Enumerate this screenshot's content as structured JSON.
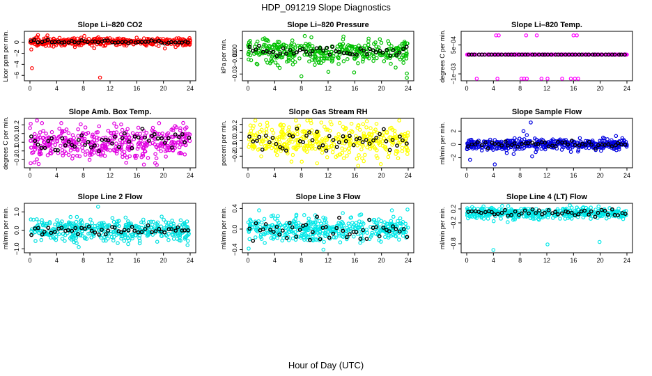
{
  "title": "HDP_091219  Slope Diagnostics",
  "xlabel_common": "Hour of Day (UTC)",
  "colors": {
    "black": "#000000"
  },
  "chart_data": [
    {
      "type": "scatter",
      "title": "Slope Li–820 CO2",
      "ylabel": "Licor ppm per min.",
      "xlim": [
        0,
        24
      ],
      "xticks": [
        "0",
        "4",
        "8",
        "12",
        "16",
        "20",
        "24"
      ],
      "ylim": [
        -6.6,
        1.6
      ],
      "yticks": [
        {
          "v": 0,
          "label": "0"
        },
        {
          "v": -2,
          "label": "−2"
        },
        {
          "v": -4,
          "label": "−4"
        },
        {
          "v": -6,
          "label": "−6"
        }
      ],
      "color": "#ff0000",
      "center": 0.1,
      "spread": 0.35,
      "count": 380,
      "black_spread": 0.15,
      "outliers": [
        [
          0.2,
          -1.3
        ],
        [
          0.3,
          -4.7
        ],
        [
          1.2,
          1.3
        ],
        [
          10.5,
          -6.4
        ]
      ]
    },
    {
      "type": "scatter",
      "title": "Slope Li–820 Pressure",
      "ylabel": "kPa per min.",
      "xlim": [
        0,
        24
      ],
      "xticks": [
        "0",
        "4",
        "8",
        "12",
        "16",
        "20",
        "24"
      ],
      "ylim": [
        -0.036,
        0.022
      ],
      "yticks": [
        {
          "v": 0.0,
          "label": "0.00"
        },
        {
          "v": -0.01,
          "label": "−0.01"
        },
        {
          "v": -0.03,
          "label": "−0.03"
        }
      ],
      "color": "#00c000",
      "center": -0.001,
      "spread": 0.008,
      "count": 380,
      "black_spread": 0.003,
      "outliers": [
        [
          8.0,
          -0.033
        ],
        [
          15.9,
          -0.028
        ],
        [
          23.8,
          -0.035
        ],
        [
          9.5,
          0.017
        ]
      ]
    },
    {
      "type": "scatter",
      "title": "Slope Li–820 Temp.",
      "ylabel": "degrees C per min.",
      "xlim": [
        0,
        24
      ],
      "xticks": [
        "0",
        "4",
        "8",
        "12",
        "16",
        "20",
        "24"
      ],
      "ylim": [
        -0.00125,
        0.0011
      ],
      "yticks": [
        {
          "v": 0.0005,
          "label": "5e−04"
        },
        {
          "v": -0.001,
          "label": "−1e−03"
        }
      ],
      "color": "#ff00ff",
      "center": 0,
      "spread": 0,
      "count": 280,
      "black_spread": 0,
      "outliers": [
        [
          4.4,
          0.001
        ],
        [
          4.6,
          -0.00125
        ],
        [
          4.8,
          0.001
        ],
        [
          1.5,
          -0.00125
        ],
        [
          8.2,
          -0.00125
        ],
        [
          8.6,
          -0.00125
        ],
        [
          8.9,
          0.001
        ],
        [
          9.0,
          -0.00125
        ],
        [
          10.5,
          0.001
        ],
        [
          11.2,
          -0.00125
        ],
        [
          12.1,
          -0.00125
        ],
        [
          14.3,
          -0.00125
        ],
        [
          15.6,
          -0.00125
        ],
        [
          16.0,
          0.001
        ],
        [
          16.2,
          -0.00125
        ],
        [
          16.5,
          0.001
        ],
        [
          16.7,
          -0.00125
        ]
      ]
    },
    {
      "type": "scatter",
      "title": "Slope Amb. Box Temp.",
      "ylabel": "degrees C per min.",
      "xlim": [
        0,
        24
      ],
      "xticks": [
        "0",
        "4",
        "8",
        "12",
        "16",
        "20",
        "24"
      ],
      "ylim": [
        -0.27,
        0.25
      ],
      "yticks": [
        {
          "v": 0.2,
          "label": "0.2"
        },
        {
          "v": 0.1,
          "label": "0.1"
        },
        {
          "v": 0.0,
          "label": "0.0"
        },
        {
          "v": -0.1,
          "label": "−0.1"
        },
        {
          "v": -0.2,
          "label": "−0.2"
        }
      ],
      "color": "#e000e0",
      "center": 0.0,
      "spread": 0.1,
      "count": 420,
      "black_spread": 0.06,
      "outliers": [
        [
          1.3,
          -0.25
        ],
        [
          19.0,
          -0.26
        ],
        [
          1.8,
          0.22
        ]
      ]
    },
    {
      "type": "scatter",
      "title": "Slope Gas Stream RH",
      "ylabel": "percent per min.",
      "xlim": [
        0,
        24
      ],
      "xticks": [
        "0",
        "4",
        "8",
        "12",
        "16",
        "20",
        "24"
      ],
      "ylim": [
        -0.32,
        0.25
      ],
      "yticks": [
        {
          "v": 0.2,
          "label": "0.2"
        },
        {
          "v": 0.1,
          "label": "0.1"
        },
        {
          "v": 0.0,
          "label": "0.0"
        },
        {
          "v": -0.1,
          "label": "−0.1"
        },
        {
          "v": -0.2,
          "label": "−0.2"
        }
      ],
      "color": "#ffff00",
      "center": 0.0,
      "spread": 0.1,
      "count": 420,
      "black_spread": 0.07,
      "outliers": [
        [
          19.9,
          -0.3
        ],
        [
          17.8,
          0.24
        ]
      ]
    },
    {
      "type": "scatter",
      "title": "Slope Sample Flow",
      "ylabel": "ml/min per min.",
      "xlim": [
        0,
        24
      ],
      "xticks": [
        "0",
        "4",
        "8",
        "12",
        "16",
        "20",
        "24"
      ],
      "ylim": [
        -3.2,
        3.6
      ],
      "yticks": [
        {
          "v": 2,
          "label": "2"
        },
        {
          "v": 0,
          "label": "0"
        },
        {
          "v": -2,
          "label": "−2"
        }
      ],
      "color": "#0000e0",
      "center": 0.0,
      "spread": 0.4,
      "count": 420,
      "black_spread": 0.25,
      "outliers": [
        [
          9.6,
          3.3
        ],
        [
          4.2,
          -3.0
        ],
        [
          0.5,
          -2.3
        ],
        [
          8.5,
          2.0
        ],
        [
          9.0,
          1.4
        ],
        [
          9.8,
          -1.8
        ],
        [
          6.0,
          -1.3
        ],
        [
          10.2,
          0.9
        ]
      ]
    },
    {
      "type": "scatter",
      "title": "Slope Line 2 Flow",
      "ylabel": "ml/min per min.",
      "xlim": [
        0,
        24
      ],
      "xticks": [
        "0",
        "4",
        "8",
        "12",
        "16",
        "20",
        "24"
      ],
      "ylim": [
        -1.1,
        1.35
      ],
      "yticks": [
        {
          "v": 1.0,
          "label": "1.0"
        },
        {
          "v": 0.0,
          "label": "0.0"
        },
        {
          "v": -1.0,
          "label": "−1.0"
        }
      ],
      "color": "#00e0e0",
      "center": 0.0,
      "spread": 0.3,
      "count": 420,
      "black_spread": 0.12,
      "outliers": [
        [
          10.2,
          1.28
        ],
        [
          7.3,
          -0.9
        ],
        [
          23.6,
          -0.8
        ]
      ]
    },
    {
      "type": "scatter",
      "title": "Slope Line 3 Flow",
      "ylabel": "ml/min per min.",
      "xlim": [
        0,
        24
      ],
      "xticks": [
        "0",
        "4",
        "8",
        "12",
        "16",
        "20",
        "24"
      ],
      "ylim": [
        -0.42,
        0.46
      ],
      "yticks": [
        {
          "v": 0.4,
          "label": "0.4"
        },
        {
          "v": 0.0,
          "label": "0.0"
        },
        {
          "v": -0.4,
          "label": "−0.4"
        }
      ],
      "color": "#00e8e8",
      "center": 0.0,
      "spread": 0.12,
      "count": 420,
      "black_spread": 0.1,
      "outliers": [
        [
          11.3,
          -0.4
        ],
        [
          0.1,
          -0.38
        ],
        [
          23.9,
          0.38
        ]
      ]
    },
    {
      "type": "scatter",
      "title": "Slope Line 4 (LT) Flow",
      "ylabel": "ml/min per min.",
      "xlim": [
        0,
        24
      ],
      "xticks": [
        "0",
        "4",
        "8",
        "12",
        "16",
        "20",
        "24"
      ],
      "ylim": [
        -1.0,
        0.3
      ],
      "yticks": [
        {
          "v": 0.2,
          "label": "0.2"
        },
        {
          "v": -0.2,
          "label": "−0.2"
        },
        {
          "v": -0.8,
          "label": "−0.8"
        }
      ],
      "color": "#00e8e8",
      "center": 0.08,
      "spread": 0.08,
      "count": 420,
      "black_spread": 0.05,
      "outliers": [
        [
          4.0,
          -0.98
        ],
        [
          12.1,
          -0.82
        ],
        [
          19.9,
          -0.75
        ]
      ]
    }
  ]
}
